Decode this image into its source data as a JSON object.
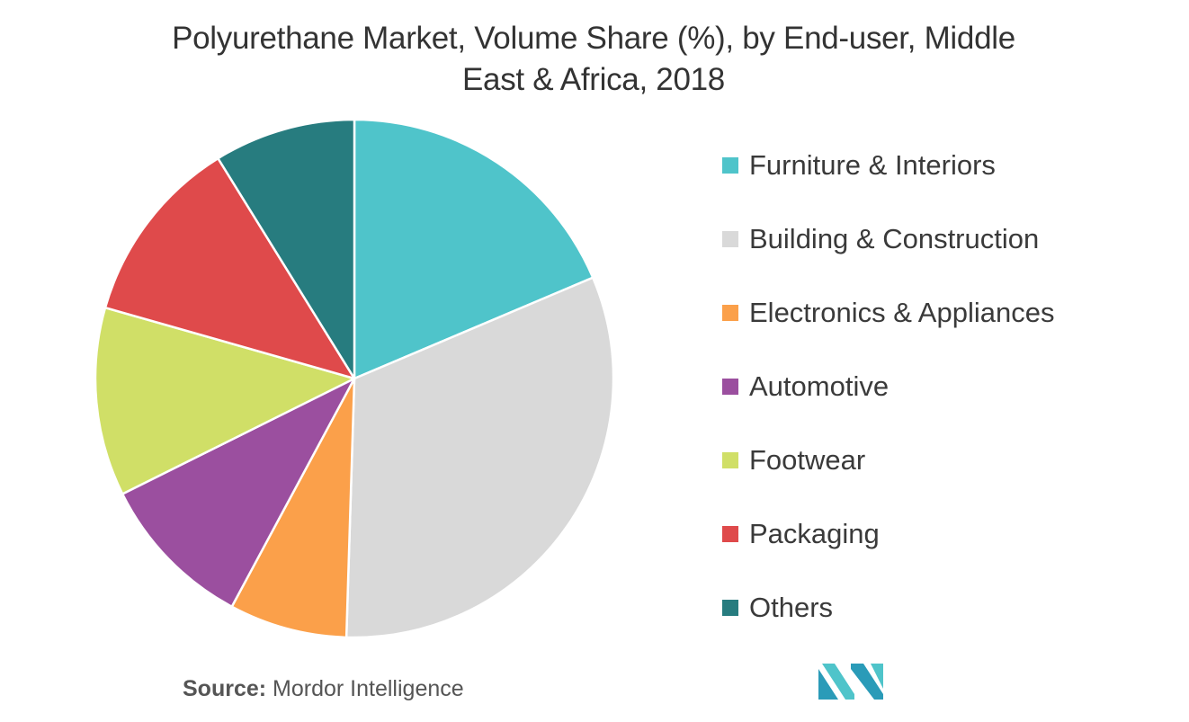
{
  "title_line1": "Polyurethane Market, Volume Share (%), by End-user, Middle",
  "title_line2": "East & Africa, 2018",
  "source_label": "Source:",
  "source_text": "Mordor Intelligence",
  "logo_icon": "mordor-intelligence-logo-icon",
  "chart_data": {
    "type": "pie",
    "title": "Polyurethane Market, Volume Share (%), by End-user, Middle East & Africa, 2018",
    "legend_position": "right",
    "labels": [
      "Furniture & Interiors",
      "Building & Construction",
      "Electronics & Appliances",
      "Automotive",
      "Footwear",
      "Packaging",
      "Others"
    ],
    "values": [
      19,
      32.5,
      7.5,
      10,
      12,
      12,
      9
    ],
    "colors": [
      "#4fc4ca",
      "#d9d9d9",
      "#fba04a",
      "#9b4f9f",
      "#d0df67",
      "#df4a4b",
      "#277c7f"
    ]
  }
}
